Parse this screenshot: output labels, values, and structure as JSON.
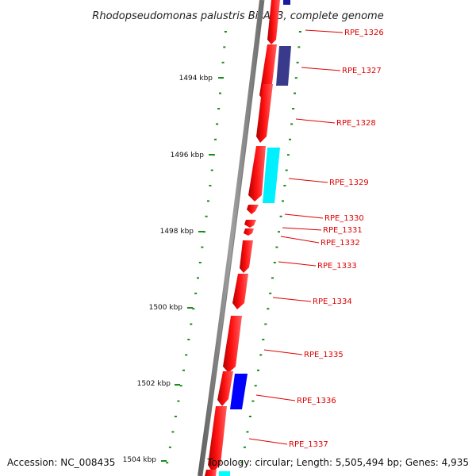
{
  "title": "Rhodopseudomonas palustris BisA53, complete genome",
  "accession": "Accession: NC_008435",
  "topology": "Topology: circular; Length: 5,505,494 bp; Genes: 4,935",
  "colors": {
    "gene_red": "#ff0000",
    "gene_dark_red": "#a00000",
    "backbone": "#808080",
    "tick_green": "#1a8a1a",
    "cog_navy": "#3a3a8c",
    "cog_cyan": "#00ffff",
    "cog_blue": "#0000ff",
    "label_red": "#e00000"
  },
  "scale_labels": [
    "1494 kbp",
    "1496 kbp",
    "1498 kbp",
    "1500 kbp",
    "1502 kbp",
    "1504 kbp"
  ],
  "genes": [
    "RPE_1326",
    "RPE_1327",
    "RPE_1328",
    "RPE_1329",
    "RPE_1330",
    "RPE_1331",
    "RPE_1332",
    "RPE_1333",
    "RPE_1334",
    "RPE_1335",
    "RPE_1336",
    "RPE_1337"
  ]
}
